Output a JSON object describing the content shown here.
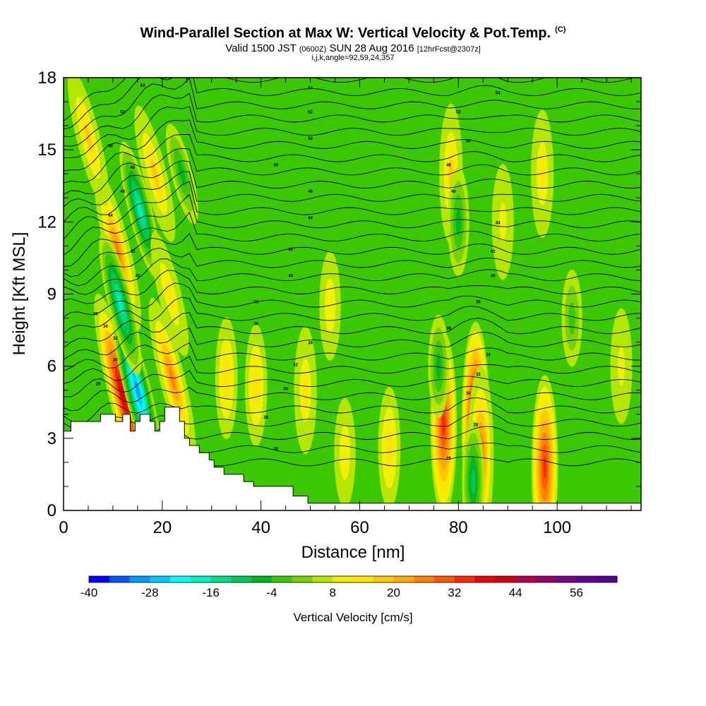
{
  "header": {
    "title": "Wind-Parallel Section at Max W: Vertical Velocity & Pot.Temp.",
    "copyright": "(C)",
    "valid_a": "Valid 1500 JST",
    "valid_b": "(0600Z)",
    "valid_c": "SUN 28 Aug 2016",
    "valid_d": "[12hrFcst@2307z]",
    "indices": "i,j,k,angle=92,59,24,357"
  },
  "chart_data": {
    "type": "heatmap",
    "xlabel": "Distance [nm]",
    "ylabel": "Height [Kft MSL]",
    "xlim": [
      0,
      117
    ],
    "ylim": [
      0,
      18
    ],
    "x_ticks": [
      "0",
      "20",
      "40",
      "60",
      "80",
      "100"
    ],
    "y_ticks": [
      "0",
      "3",
      "6",
      "9",
      "12",
      "15",
      "18"
    ],
    "grid": false,
    "colorbar": {
      "label": "Vertical Velocity [cm/s]",
      "ticks": [
        "-40",
        "-28",
        "-16",
        "-4",
        "8",
        "20",
        "32",
        "44",
        "56"
      ],
      "min": -40,
      "max": 64,
      "step": 4,
      "colors": [
        "#0000ff",
        "#0055ff",
        "#0099ff",
        "#00c8ff",
        "#00ffff",
        "#00f0c0",
        "#00dc8c",
        "#00c850",
        "#00b428",
        "#3cc800",
        "#78d200",
        "#b4e600",
        "#f0f000",
        "#ffe600",
        "#ffc800",
        "#ffaa00",
        "#ff8200",
        "#ff5a00",
        "#ff2800",
        "#f00000",
        "#d20014",
        "#b40050",
        "#96006e",
        "#78008c",
        "#640096",
        "#500096"
      ]
    },
    "terrain_nm_kft": [
      [
        0,
        3.3
      ],
      [
        1.5,
        3.3
      ],
      [
        1.5,
        3.7
      ],
      [
        7.5,
        3.7
      ],
      [
        7.5,
        4.0
      ],
      [
        10.5,
        4.0
      ],
      [
        10.5,
        3.7
      ],
      [
        12,
        3.7
      ],
      [
        12,
        4.0
      ],
      [
        13.5,
        4.0
      ],
      [
        13.5,
        3.3
      ],
      [
        14.5,
        3.3
      ],
      [
        14.5,
        3.7
      ],
      [
        15.5,
        3.7
      ],
      [
        15.5,
        4.0
      ],
      [
        17.5,
        4.0
      ],
      [
        17.5,
        3.7
      ],
      [
        18.5,
        3.7
      ],
      [
        18.5,
        3.3
      ],
      [
        19.5,
        3.3
      ],
      [
        19.5,
        3.7
      ],
      [
        20.5,
        3.7
      ],
      [
        20.5,
        4.3
      ],
      [
        23.5,
        4.3
      ],
      [
        23.5,
        3.7
      ],
      [
        24.5,
        3.7
      ],
      [
        24.5,
        3.0
      ],
      [
        25.5,
        3.0
      ],
      [
        25.5,
        2.7
      ],
      [
        27.5,
        2.7
      ],
      [
        27.5,
        2.4
      ],
      [
        29.5,
        2.4
      ],
      [
        29.5,
        2.1
      ],
      [
        30.5,
        2.1
      ],
      [
        30.5,
        1.8
      ],
      [
        32.5,
        1.8
      ],
      [
        32.5,
        1.5
      ],
      [
        36.5,
        1.5
      ],
      [
        36.5,
        1.2
      ],
      [
        38.5,
        1.2
      ],
      [
        38.5,
        1.0
      ],
      [
        46.5,
        1.0
      ],
      [
        46.5,
        0.6
      ],
      [
        49.5,
        0.6
      ],
      [
        49.5,
        0.3
      ],
      [
        117,
        0.3
      ]
    ],
    "wind_cells": [
      {
        "x": 12,
        "y": 4.8,
        "w": 42
      },
      {
        "x": 15,
        "y": 5.0,
        "w": -32
      },
      {
        "x": 11,
        "y": 10.8,
        "w": 26
      },
      {
        "x": 5,
        "y": 15.5,
        "w": 18
      },
      {
        "x": 11.5,
        "y": 8.6,
        "w": -20
      },
      {
        "x": 15.5,
        "y": 12.5,
        "w": -18
      },
      {
        "x": 22,
        "y": 5.5,
        "w": 26
      },
      {
        "x": 18.5,
        "y": 14,
        "w": 18
      },
      {
        "x": 21.5,
        "y": 9,
        "w": 14
      },
      {
        "x": 24,
        "y": 14,
        "w": -6
      },
      {
        "x": 33,
        "y": 5.5,
        "w": 12
      },
      {
        "x": 39,
        "y": 5.2,
        "w": 12
      },
      {
        "x": 49,
        "y": 5.0,
        "w": 14
      },
      {
        "x": 54,
        "y": 8.5,
        "w": 8
      },
      {
        "x": 57,
        "y": 2.4,
        "w": 8
      },
      {
        "x": 66,
        "y": 2.6,
        "w": 12
      },
      {
        "x": 77,
        "y": 3.6,
        "w": 32
      },
      {
        "x": 78.5,
        "y": 14,
        "w": 18
      },
      {
        "x": 83.5,
        "y": 3.5,
        "w": 44
      },
      {
        "x": 84.5,
        "y": 2.3,
        "w": 30
      },
      {
        "x": 83,
        "y": 1.2,
        "w": -12
      },
      {
        "x": 80,
        "y": 12,
        "w": -8
      },
      {
        "x": 76,
        "y": 6,
        "w": -6
      },
      {
        "x": 89,
        "y": 12,
        "w": 10
      },
      {
        "x": 97.5,
        "y": 1.8,
        "w": 32
      },
      {
        "x": 97,
        "y": 14,
        "w": 14
      },
      {
        "x": 103,
        "y": 8,
        "w": -4
      },
      {
        "x": 113,
        "y": 6,
        "w": 10
      }
    ],
    "isentrope_labels": [
      {
        "x": 16,
        "y": 17.7,
        "text": "54"
      },
      {
        "x": 12,
        "y": 16.6,
        "text": "52"
      },
      {
        "x": 9.5,
        "y": 15.2,
        "text": "50"
      },
      {
        "x": 14,
        "y": 14.3,
        "text": "48"
      },
      {
        "x": 12,
        "y": 13.3,
        "text": "46"
      },
      {
        "x": 9.5,
        "y": 12.3,
        "text": "44"
      },
      {
        "x": 14,
        "y": 10.8,
        "text": "42"
      },
      {
        "x": 15,
        "y": 9.8,
        "text": "40"
      },
      {
        "x": 6.5,
        "y": 8.2,
        "text": "36"
      },
      {
        "x": 8.5,
        "y": 7.7,
        "text": "34"
      },
      {
        "x": 10.5,
        "y": 7.2,
        "text": "32"
      },
      {
        "x": 10.5,
        "y": 6.3,
        "text": "30"
      },
      {
        "x": 7,
        "y": 5.3,
        "text": "28"
      },
      {
        "x": 50,
        "y": 17.6,
        "text": "54"
      },
      {
        "x": 50,
        "y": 16.6,
        "text": "52"
      },
      {
        "x": 50,
        "y": 15.5,
        "text": "50"
      },
      {
        "x": 43,
        "y": 14.4,
        "text": "48"
      },
      {
        "x": 50,
        "y": 13.3,
        "text": "46"
      },
      {
        "x": 50,
        "y": 12.2,
        "text": "44"
      },
      {
        "x": 46,
        "y": 10.9,
        "text": "42"
      },
      {
        "x": 46,
        "y": 9.8,
        "text": "40"
      },
      {
        "x": 39,
        "y": 8.7,
        "text": "38"
      },
      {
        "x": 39,
        "y": 7.8,
        "text": "36"
      },
      {
        "x": 50,
        "y": 7.0,
        "text": "34"
      },
      {
        "x": 47,
        "y": 6.1,
        "text": "32"
      },
      {
        "x": 45,
        "y": 5.1,
        "text": "30"
      },
      {
        "x": 41,
        "y": 3.9,
        "text": "28"
      },
      {
        "x": 43,
        "y": 2.6,
        "text": "26"
      },
      {
        "x": 88,
        "y": 17.4,
        "text": "54"
      },
      {
        "x": 80,
        "y": 16.6,
        "text": "52"
      },
      {
        "x": 82,
        "y": 15.4,
        "text": "50"
      },
      {
        "x": 78,
        "y": 14.4,
        "text": "48"
      },
      {
        "x": 79,
        "y": 13.3,
        "text": "46"
      },
      {
        "x": 88,
        "y": 12.0,
        "text": "44"
      },
      {
        "x": 87,
        "y": 10.8,
        "text": "42"
      },
      {
        "x": 87,
        "y": 9.8,
        "text": "40"
      },
      {
        "x": 84,
        "y": 8.7,
        "text": "38"
      },
      {
        "x": 78,
        "y": 7.6,
        "text": "36"
      },
      {
        "x": 86,
        "y": 6.5,
        "text": "34"
      },
      {
        "x": 84,
        "y": 5.7,
        "text": "32"
      },
      {
        "x": 82,
        "y": 4.9,
        "text": "30"
      },
      {
        "x": 83.5,
        "y": 3.6,
        "text": "28"
      },
      {
        "x": 78,
        "y": 2.2,
        "text": "26"
      }
    ]
  }
}
